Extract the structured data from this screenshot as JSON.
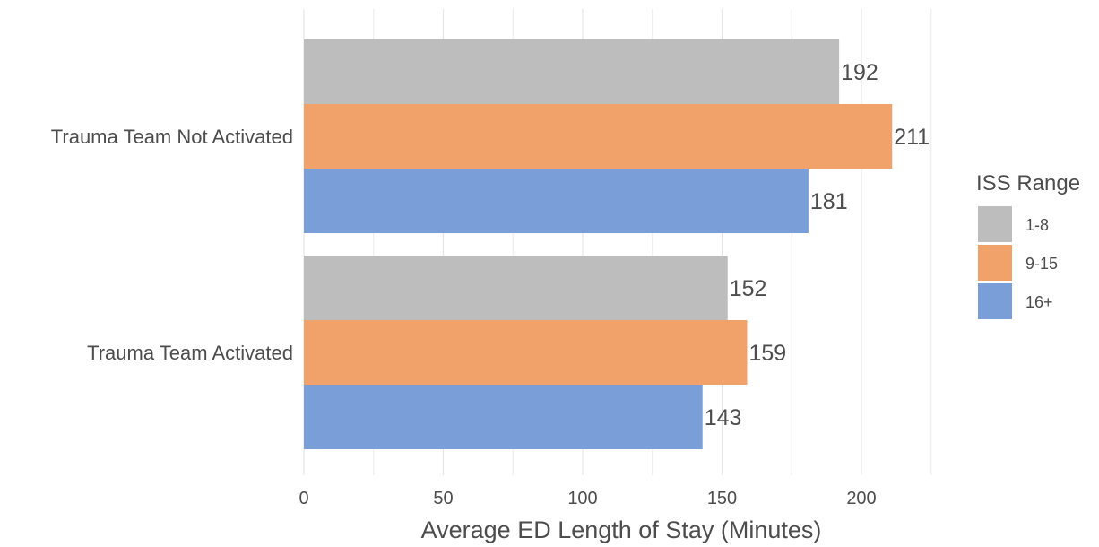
{
  "chart_data": {
    "type": "bar",
    "orientation": "horizontal",
    "categories": [
      "Trauma Team Not Activated",
      "Trauma Team Activated"
    ],
    "series": [
      {
        "name": "1-8",
        "color": "#bdbdbd",
        "values": [
          192,
          152
        ]
      },
      {
        "name": "9-15",
        "color": "#f0a26a",
        "values": [
          211,
          159
        ]
      },
      {
        "name": "16+",
        "color": "#7a9ed7",
        "values": [
          181,
          143
        ]
      }
    ],
    "xlabel": "Average ED Length of Stay (Minutes)",
    "ylabel": "",
    "xlim": [
      0,
      225
    ],
    "xticks": [
      0,
      50,
      100,
      150,
      200
    ],
    "grid": true,
    "legend": {
      "title": "ISS Range",
      "position": "right"
    }
  }
}
